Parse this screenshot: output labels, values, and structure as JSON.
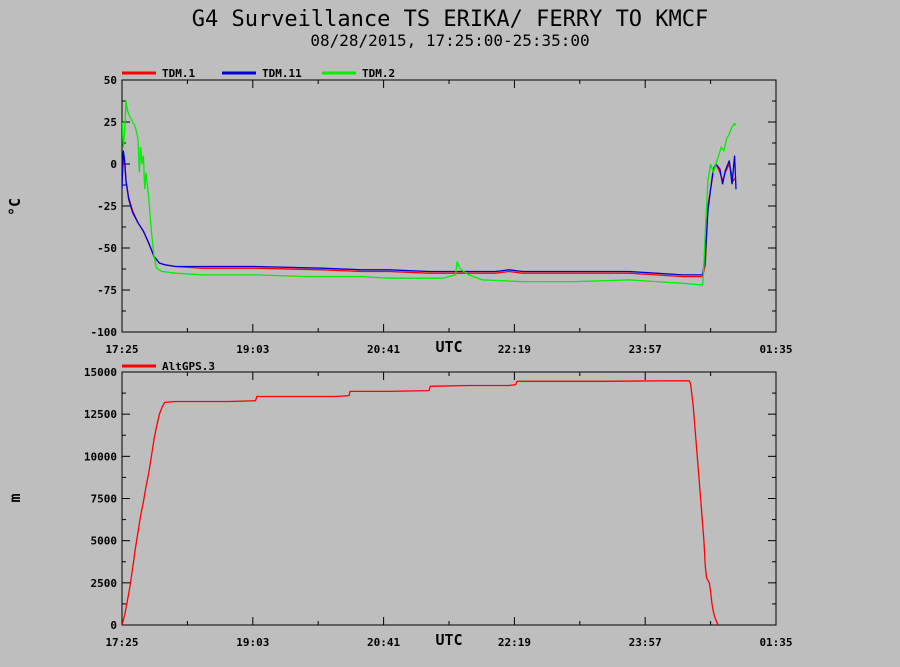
{
  "chart_data": [
    {
      "type": "line",
      "title": "G4 Surveillance TS ERIKA/ FERRY TO KMCF",
      "subtitle": "08/28/2015, 17:25:00-25:35:00",
      "xlabel": "UTC",
      "ylabel": "°C",
      "xlim": [
        0,
        490
      ],
      "ylim": [
        -100,
        50
      ],
      "x_tick_values": [
        0,
        98,
        196,
        294,
        392,
        490
      ],
      "x_tick_labels": [
        "17:25",
        "19:03",
        "20:41",
        "22:19",
        "23:57",
        "01:35"
      ],
      "y_tick_values": [
        -100,
        -75,
        -50,
        -25,
        0,
        25,
        50
      ],
      "y_tick_labels": [
        "-100",
        "-75",
        "-50",
        "-25",
        "0",
        "25",
        "50"
      ],
      "legend": "top-left",
      "series": [
        {
          "name": "TDM.1",
          "color": "#ff0000",
          "points": [
            [
              0,
              -10
            ],
            [
              1,
              5
            ],
            [
              2,
              0
            ],
            [
              3,
              -10
            ],
            [
              5,
              -20
            ],
            [
              8,
              -28
            ],
            [
              12,
              -35
            ],
            [
              16,
              -40
            ],
            [
              20,
              -47
            ],
            [
              24,
              -55
            ],
            [
              28,
              -59
            ],
            [
              32,
              -60
            ],
            [
              40,
              -61
            ],
            [
              60,
              -62
            ],
            [
              100,
              -62
            ],
            [
              150,
              -63
            ],
            [
              180,
              -64
            ],
            [
              200,
              -64
            ],
            [
              230,
              -65
            ],
            [
              240,
              -65
            ],
            [
              270,
              -65
            ],
            [
              280,
              -65
            ],
            [
              290,
              -64
            ],
            [
              300,
              -65
            ],
            [
              320,
              -65
            ],
            [
              340,
              -65
            ],
            [
              360,
              -65
            ],
            [
              380,
              -65
            ],
            [
              400,
              -66
            ],
            [
              420,
              -67
            ],
            [
              435,
              -67
            ],
            [
              437,
              -60
            ],
            [
              439,
              -25
            ],
            [
              441,
              -15
            ],
            [
              443,
              -5
            ],
            [
              445,
              0
            ],
            [
              448,
              -5
            ],
            [
              450,
              -10
            ],
            [
              452,
              -5
            ],
            [
              455,
              0
            ],
            [
              458,
              -10
            ],
            [
              460,
              -8
            ]
          ]
        },
        {
          "name": "TDM.11",
          "color": "#0000dd",
          "points": [
            [
              0,
              -15
            ],
            [
              1,
              8
            ],
            [
              2,
              2
            ],
            [
              3,
              -10
            ],
            [
              5,
              -21
            ],
            [
              8,
              -29
            ],
            [
              12,
              -35
            ],
            [
              16,
              -40
            ],
            [
              20,
              -47
            ],
            [
              24,
              -55
            ],
            [
              28,
              -59
            ],
            [
              32,
              -60
            ],
            [
              40,
              -61
            ],
            [
              60,
              -61
            ],
            [
              100,
              -61
            ],
            [
              150,
              -62
            ],
            [
              180,
              -63
            ],
            [
              200,
              -63
            ],
            [
              230,
              -64
            ],
            [
              240,
              -64
            ],
            [
              270,
              -64
            ],
            [
              280,
              -64
            ],
            [
              290,
              -63
            ],
            [
              300,
              -64
            ],
            [
              320,
              -64
            ],
            [
              340,
              -64
            ],
            [
              360,
              -64
            ],
            [
              380,
              -64
            ],
            [
              400,
              -65
            ],
            [
              420,
              -66
            ],
            [
              435,
              -66
            ],
            [
              437,
              -55
            ],
            [
              439,
              -28
            ],
            [
              441,
              -15
            ],
            [
              443,
              -3
            ],
            [
              445,
              0
            ],
            [
              448,
              -3
            ],
            [
              450,
              -12
            ],
            [
              452,
              -4
            ],
            [
              455,
              2
            ],
            [
              457,
              -12
            ],
            [
              459,
              5
            ],
            [
              460,
              -15
            ]
          ]
        },
        {
          "name": "TDM.2",
          "color": "#00ee00",
          "points": [
            [
              0,
              25
            ],
            [
              1,
              10
            ],
            [
              2,
              20
            ],
            [
              3,
              38
            ],
            [
              4,
              32
            ],
            [
              6,
              28
            ],
            [
              8,
              25
            ],
            [
              10,
              22
            ],
            [
              12,
              15
            ],
            [
              13,
              -5
            ],
            [
              14,
              10
            ],
            [
              15,
              0
            ],
            [
              16,
              5
            ],
            [
              17,
              -15
            ],
            [
              18,
              -5
            ],
            [
              20,
              -20
            ],
            [
              22,
              -40
            ],
            [
              24,
              -55
            ],
            [
              26,
              -62
            ],
            [
              30,
              -64
            ],
            [
              40,
              -65
            ],
            [
              60,
              -66
            ],
            [
              100,
              -66
            ],
            [
              140,
              -67
            ],
            [
              180,
              -67
            ],
            [
              200,
              -68
            ],
            [
              240,
              -68
            ],
            [
              250,
              -66
            ],
            [
              251,
              -58
            ],
            [
              253,
              -62
            ],
            [
              256,
              -64
            ],
            [
              260,
              -66
            ],
            [
              270,
              -69
            ],
            [
              300,
              -70
            ],
            [
              340,
              -70
            ],
            [
              380,
              -69
            ],
            [
              400,
              -70
            ],
            [
              420,
              -71
            ],
            [
              435,
              -72
            ],
            [
              436,
              -60
            ],
            [
              437,
              -40
            ],
            [
              439,
              -10
            ],
            [
              441,
              0
            ],
            [
              443,
              -5
            ],
            [
              445,
              0
            ],
            [
              447,
              5
            ],
            [
              449,
              10
            ],
            [
              451,
              8
            ],
            [
              453,
              15
            ],
            [
              455,
              18
            ],
            [
              457,
              22
            ],
            [
              459,
              24
            ],
            [
              460,
              23
            ]
          ]
        }
      ]
    },
    {
      "type": "line",
      "title": "",
      "xlabel": "UTC",
      "ylabel": "m",
      "xlim": [
        0,
        490
      ],
      "ylim": [
        0,
        15000
      ],
      "x_tick_values": [
        0,
        98,
        196,
        294,
        392,
        490
      ],
      "x_tick_labels": [
        "17:25",
        "19:03",
        "20:41",
        "22:19",
        "23:57",
        "01:35"
      ],
      "y_tick_values": [
        0,
        2500,
        5000,
        7500,
        10000,
        12500,
        15000
      ],
      "y_tick_labels": [
        "0",
        "2500",
        "5000",
        "7500",
        "10000",
        "12500",
        "15000"
      ],
      "legend": "top-left",
      "series": [
        {
          "name": "AltGPS.3",
          "color": "#ff0000",
          "points": [
            [
              0,
              0
            ],
            [
              2,
              600
            ],
            [
              4,
              1400
            ],
            [
              6,
              2300
            ],
            [
              8,
              3400
            ],
            [
              10,
              4500
            ],
            [
              12,
              5500
            ],
            [
              14,
              6500
            ],
            [
              16,
              7300
            ],
            [
              18,
              8200
            ],
            [
              20,
              9000
            ],
            [
              22,
              10000
            ],
            [
              24,
              11000
            ],
            [
              26,
              11800
            ],
            [
              28,
              12500
            ],
            [
              30,
              12900
            ],
            [
              32,
              13200
            ],
            [
              40,
              13250
            ],
            [
              80,
              13250
            ],
            [
              100,
              13300
            ],
            [
              101,
              13550
            ],
            [
              120,
              13550
            ],
            [
              160,
              13550
            ],
            [
              170,
              13600
            ],
            [
              171,
              13850
            ],
            [
              200,
              13850
            ],
            [
              230,
              13900
            ],
            [
              231,
              14150
            ],
            [
              260,
              14200
            ],
            [
              290,
              14200
            ],
            [
              295,
              14250
            ],
            [
              296,
              14450
            ],
            [
              320,
              14450
            ],
            [
              360,
              14450
            ],
            [
              400,
              14470
            ],
            [
              420,
              14480
            ],
            [
              425,
              14480
            ],
            [
              426,
              14300
            ],
            [
              428,
              13000
            ],
            [
              430,
              11000
            ],
            [
              432,
              9000
            ],
            [
              434,
              7000
            ],
            [
              436,
              5000
            ],
            [
              437,
              3500
            ],
            [
              438,
              2800
            ],
            [
              440,
              2500
            ],
            [
              441,
              2000
            ],
            [
              442,
              1300
            ],
            [
              443,
              800
            ],
            [
              444,
              500
            ],
            [
              445,
              300
            ],
            [
              446,
              100
            ],
            [
              447,
              0
            ]
          ]
        }
      ]
    }
  ]
}
